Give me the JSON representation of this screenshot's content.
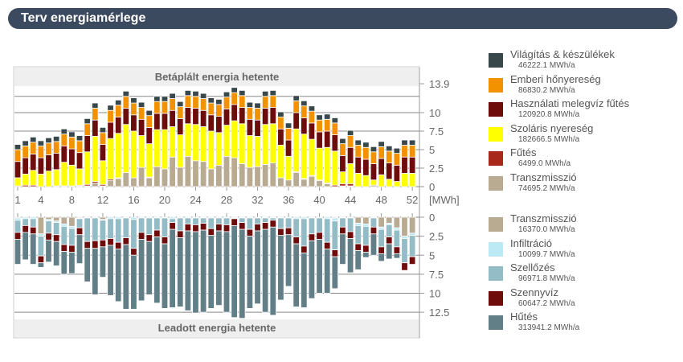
{
  "title": "Terv energiamérlege",
  "chart_data": [
    {
      "type": "bar",
      "stacked": true,
      "title": "Betáplált energia hetente",
      "unit": "[MWh]",
      "ylim": [
        0,
        13.9
      ],
      "yticks": [
        "13.9",
        "10",
        "7.5",
        "5",
        "2.5",
        "0"
      ],
      "xticks": [
        "1",
        "4",
        "8",
        "12",
        "16",
        "20",
        "24",
        "28",
        "32",
        "36",
        "40",
        "44",
        "48",
        "52"
      ],
      "weeks": [
        1,
        2,
        3,
        4,
        5,
        6,
        7,
        8,
        9,
        10,
        11,
        12,
        13,
        14,
        15,
        16,
        17,
        18,
        19,
        20,
        21,
        22,
        23,
        24,
        25,
        26,
        27,
        28,
        29,
        30,
        31,
        32,
        33,
        34,
        35,
        36,
        37,
        38,
        39,
        40,
        41,
        42,
        43,
        44,
        45,
        46,
        47,
        48,
        49,
        50,
        51,
        52
      ],
      "series": [
        {
          "name": "Transzmisszió",
          "total": "74695.2 MWh/a",
          "color": "#b9aa92",
          "values": [
            0,
            0,
            0,
            0,
            0,
            0.1,
            0.1,
            0.1,
            0.1,
            0.1,
            0.5,
            0.1,
            0.8,
            1.1,
            1.9,
            1.2,
            2.6,
            1.2,
            2.7,
            2.4,
            4.0,
            2.6,
            4.1,
            3.5,
            3.4,
            2.4,
            2.9,
            4.1,
            3.9,
            3.1,
            2.6,
            2.7,
            3.0,
            3.2,
            1.2,
            0.9,
            1.9,
            1.0,
            1.4,
            0.8,
            0.4,
            0,
            0.1,
            0.1,
            0,
            0,
            0.2,
            0,
            0,
            0,
            0,
            0
          ]
        },
        {
          "name": "Fűtés",
          "total": "6499.0 MWh/a",
          "color": "#a8281c",
          "values": [
            0.1,
            0.2,
            0.2,
            0,
            0,
            0,
            0,
            0,
            0.1,
            0.2,
            0.2,
            0.2,
            0.2,
            0.1,
            0,
            0,
            0,
            0.1,
            0,
            0,
            0,
            0,
            0,
            0,
            0,
            0,
            0,
            0,
            0,
            0,
            0,
            0,
            0,
            0,
            0,
            0,
            0.1,
            0.1,
            0.1,
            0.1,
            0.1,
            0.2,
            0.3,
            0.3,
            0,
            0,
            0,
            0,
            0,
            0,
            0,
            0
          ]
        },
        {
          "name": "Szoláris nyereség",
          "total": "182666.5 MWh/a",
          "color": "#ffff00",
          "values": [
            1.1,
            1.5,
            2.0,
            1.7,
            2.1,
            2.2,
            3.2,
            2.8,
            2.2,
            4.4,
            6.1,
            3.2,
            5.5,
            6.0,
            6.5,
            6.3,
            4.3,
            4.5,
            5.0,
            5.3,
            4.1,
            4.4,
            4.4,
            4.9,
            4.7,
            5.1,
            4.4,
            4.2,
            5.0,
            5.4,
            4.3,
            4.1,
            5.4,
            5.3,
            4.4,
            3.2,
            5.8,
            6.0,
            4.9,
            4.3,
            4.8,
            4.6,
            1.6,
            2.7,
            1.8,
            1.5,
            0.7,
            1.6,
            1.0,
            0.7,
            1.8,
            1.8
          ]
        },
        {
          "name": "Használati melegvíz fűtés",
          "total": "120920.8 MWh/a",
          "color": "#6e0b0b",
          "values": [
            2.2,
            2.2,
            2.2,
            2.2,
            2.2,
            2.2,
            2.2,
            2.2,
            2.2,
            2.2,
            2.2,
            2.2,
            2.2,
            2.2,
            2.2,
            2.2,
            2.2,
            2.2,
            2.2,
            2.2,
            2.2,
            2.2,
            2.2,
            2.2,
            2.2,
            2.2,
            2.2,
            2.2,
            2.2,
            2.2,
            2.2,
            2.2,
            2.2,
            2.2,
            2.2,
            2.2,
            2.2,
            2.2,
            2.2,
            2.2,
            2.2,
            2.2,
            2.2,
            2.2,
            2.2,
            2.2,
            2.2,
            2.2,
            2.2,
            2.2,
            2.2,
            2.2
          ]
        },
        {
          "name": "Emberi hőnyereség",
          "total": "86830.2 MWh/a",
          "color": "#f39200",
          "values": [
            1.6,
            1.6,
            1.6,
            1.6,
            1.6,
            1.6,
            1.6,
            1.6,
            1.6,
            1.6,
            1.6,
            1.6,
            1.6,
            1.6,
            1.6,
            1.6,
            1.6,
            1.6,
            1.6,
            1.6,
            1.6,
            1.6,
            1.6,
            1.6,
            1.6,
            1.6,
            1.6,
            1.6,
            1.6,
            1.6,
            1.6,
            1.6,
            1.6,
            1.6,
            1.6,
            1.6,
            1.6,
            1.6,
            1.6,
            1.6,
            1.6,
            1.6,
            1.6,
            1.6,
            1.6,
            1.6,
            1.6,
            1.6,
            1.6,
            1.6,
            1.6,
            1.6
          ]
        },
        {
          "name": "Világítás & készülékek",
          "total": "46222.1 MWh/a",
          "color": "#37474a",
          "values": [
            0.7,
            0.7,
            0.7,
            0.7,
            0.7,
            0.7,
            0.7,
            0.7,
            0.7,
            0.7,
            0.7,
            0.7,
            0.7,
            0.7,
            0.7,
            0.7,
            0.7,
            0.7,
            0.7,
            0.7,
            0.7,
            0.7,
            0.7,
            0.7,
            0.7,
            0.7,
            0.7,
            0.7,
            0.7,
            0.7,
            0.7,
            0.7,
            0.7,
            0.7,
            0.7,
            0.7,
            0.7,
            0.7,
            0.7,
            0.7,
            0.7,
            0.7,
            0.7,
            0.7,
            0.7,
            0.7,
            0.7,
            0.7,
            0.7,
            0.7,
            0.7,
            0.7
          ]
        }
      ],
      "legend_position": "right",
      "grid": true
    },
    {
      "type": "bar",
      "stacked": true,
      "title": "Leadott energia hetente",
      "ylim": [
        0,
        13.9
      ],
      "yticks": [
        "0",
        "2.5",
        "5",
        "7.5",
        "10",
        "12.5"
      ],
      "series": [
        {
          "name": "Transzmisszió",
          "total": "16370.0 MWh/a",
          "color": "#b9aa92",
          "values": [
            0.1,
            0,
            0,
            2.2,
            0.3,
            0.5,
            0.9,
            1.2,
            0.1,
            0,
            0,
            0.3,
            0,
            0,
            0,
            0,
            0,
            0,
            0,
            0,
            0,
            0,
            0,
            0,
            0,
            0,
            0,
            0,
            0,
            0,
            0,
            0,
            0,
            0,
            0,
            0,
            0,
            0,
            0,
            0,
            0,
            0.1,
            0,
            0,
            0.8,
            0.9,
            0,
            1.3,
            0.8,
            1.4,
            2.5,
            2.1
          ]
        },
        {
          "name": "Infiltráció",
          "total": "10099.7 MWh/a",
          "color": "#bde9f5",
          "values": [
            0.3,
            0.2,
            0.2,
            0.3,
            0.2,
            0.2,
            0.3,
            0.3,
            0.1,
            0.1,
            0.1,
            0.1,
            0.2,
            0.2,
            0.1,
            0.3,
            0.1,
            0.1,
            0.1,
            0.1,
            0.2,
            0.1,
            0.1,
            0.1,
            0.1,
            0.1,
            0.1,
            0.1,
            0.1,
            0.1,
            0.1,
            0.1,
            0.1,
            0.1,
            0.1,
            0.1,
            0.2,
            0.2,
            0.1,
            0.1,
            0.2,
            0.4,
            0.1,
            0.1,
            0.3,
            0.3,
            0.1,
            0.3,
            0.2,
            0.3,
            0.3,
            0.3
          ]
        },
        {
          "name": "Szellőzés",
          "total": "96971.8 MWh/a",
          "color": "#94bcc6",
          "values": [
            1.6,
            0.9,
            1.1,
            2.6,
            1.6,
            1.6,
            2.4,
            2.2,
            1.2,
            3.1,
            3.0,
            2.6,
            2.6,
            3.1,
            2.6,
            3.8,
            1.9,
            2.2,
            1.6,
            2.5,
            0.5,
            1.7,
            0.8,
            0.9,
            0.7,
            1.4,
            0.8,
            0.9,
            0.1,
            0.6,
            1.5,
            0.8,
            0.6,
            0.3,
            1.4,
            1.3,
            2.4,
            3.6,
            2.1,
            1.9,
            3.1,
            3.8,
            1.2,
            1.8,
            2.4,
            2.5,
            1.2,
            2.3,
            1.6,
            2.2,
            3.2,
            2.8
          ]
        },
        {
          "name": "Szennyvíz",
          "total": "60647.2 MWh/a",
          "color": "#6e0b0b",
          "values": [
            0.9,
            0.9,
            0.9,
            0.9,
            0.9,
            0.9,
            0.9,
            0.9,
            0.9,
            0.9,
            1.0,
            0.9,
            0.9,
            0.9,
            0.9,
            0.9,
            0.9,
            0.9,
            0.9,
            0.9,
            0.9,
            0.9,
            0.9,
            0.9,
            0.9,
            0.9,
            0.9,
            0.9,
            0.9,
            0.9,
            0.9,
            0.9,
            0.9,
            0.9,
            0.9,
            0.9,
            0.9,
            0.9,
            0.9,
            0.9,
            0.9,
            0.9,
            0.9,
            0.9,
            0.9,
            0.9,
            0.9,
            0.9,
            0.9,
            0.9,
            1.0,
            1.0
          ]
        },
        {
          "name": "Hűtés",
          "total": "313941.2 MWh/a",
          "color": "#627e87",
          "values": [
            3.3,
            3.6,
            4.0,
            0.6,
            2.9,
            3.2,
            3.0,
            2.8,
            3.8,
            4.4,
            6.1,
            4.0,
            6.6,
            6.9,
            8.5,
            7.1,
            8.1,
            7.0,
            8.7,
            8.5,
            10.3,
            9.1,
            10.5,
            10.7,
            10.8,
            9.6,
            9.8,
            10.6,
            12.1,
            11.7,
            9.5,
            9.6,
            10.9,
            11.6,
            8.5,
            6.8,
            8.3,
            7.2,
            7.6,
            7.1,
            5.8,
            4.2,
            4.0,
            4.5,
            2.5,
            0.7,
            2.8,
            1.0,
            2.0,
            0.6,
            0,
            0
          ]
        }
      ],
      "legend_position": "right",
      "grid": true
    }
  ]
}
